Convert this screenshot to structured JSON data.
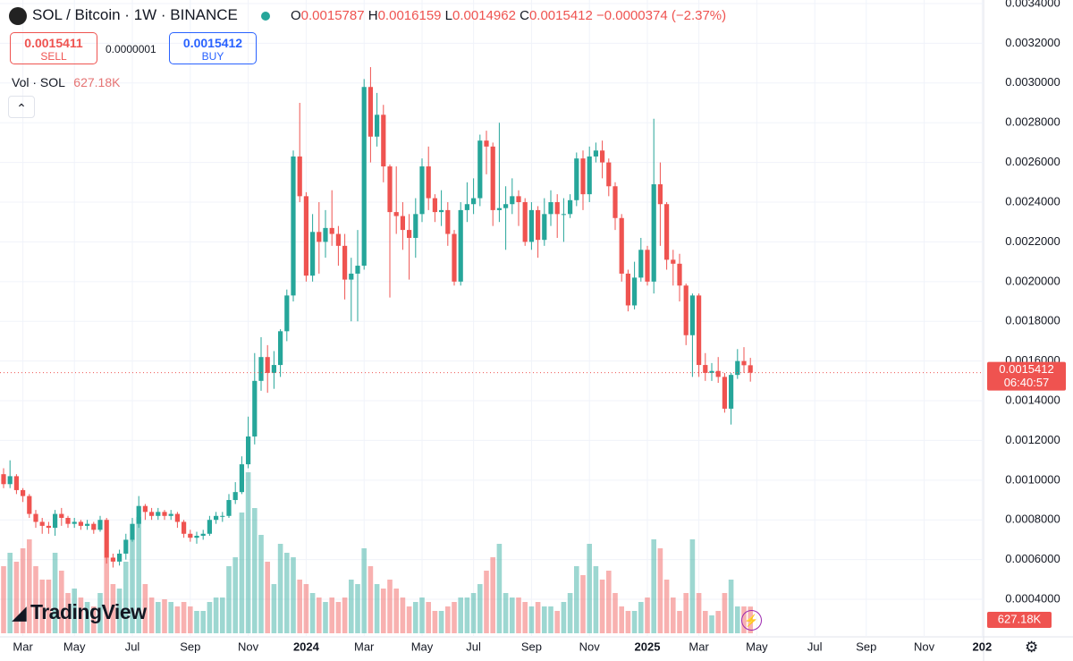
{
  "chart_data": {
    "type": "candlestick",
    "symbol": "SOL / Bitcoin · 1W · BINANCE",
    "ohlc_labels": [
      "O",
      "H",
      "L",
      "C"
    ],
    "change": "−0.0000374 (−2.37%)",
    "sell_price": 0.0015411,
    "sell_label": "SELL",
    "spread": "0.0000001",
    "buy_price": 0.0015412,
    "buy_label": "BUY",
    "countdown": "06:40:57",
    "logo_text": "TradingView",
    "up_color": "#26a69a",
    "down_color": "#ef5350",
    "price_line_color": "#ef5350",
    "ylim": [
      0.000229,
      0.003418
    ],
    "yticks": [
      {
        "value": 0.0004,
        "label": "0.0004000"
      },
      {
        "value": 0.0006,
        "label": "0.0006000"
      },
      {
        "value": 0.0008,
        "label": "0.0008000"
      },
      {
        "value": 0.001,
        "label": "0.0010000"
      },
      {
        "value": 0.0012,
        "label": "0.0012000"
      },
      {
        "value": 0.0014,
        "label": "0.0014000"
      },
      {
        "value": 0.0016,
        "label": "0.0016000"
      },
      {
        "value": 0.0018,
        "label": "0.0018000"
      },
      {
        "value": 0.002,
        "label": "0.0020000"
      },
      {
        "value": 0.0022,
        "label": "0.0022000"
      },
      {
        "value": 0.0024,
        "label": "0.0024000"
      },
      {
        "value": 0.0026,
        "label": "0.0026000"
      },
      {
        "value": 0.0028,
        "label": "0.0028000"
      },
      {
        "value": 0.003,
        "label": "0.0030000"
      },
      {
        "value": 0.0032,
        "label": "0.0032000"
      },
      {
        "value": 0.0034,
        "label": "0.0034000"
      }
    ],
    "grid": true,
    "categories": [
      null,
      null,
      null,
      "Mar",
      null,
      null,
      null,
      null,
      null,
      null,
      null,
      "May",
      null,
      null,
      null,
      null,
      null,
      null,
      null,
      null,
      "Jul",
      null,
      null,
      null,
      null,
      null,
      null,
      null,
      null,
      "Sep",
      null,
      null,
      null,
      null,
      null,
      null,
      null,
      null,
      "Nov",
      null,
      null,
      null,
      null,
      null,
      null,
      null,
      null,
      "2024",
      null,
      null,
      null,
      null,
      null,
      null,
      null,
      null,
      "Mar",
      null,
      null,
      null,
      null,
      null,
      null,
      null,
      null,
      "May",
      null,
      null,
      null,
      null,
      null,
      null,
      null,
      "Jul",
      null,
      null,
      null,
      null,
      null,
      null,
      null,
      null,
      "Sep",
      null,
      null,
      null,
      null,
      null,
      null,
      null,
      null,
      "Nov",
      null,
      null,
      null,
      null,
      null,
      null,
      null,
      null,
      "2025",
      null,
      null,
      null,
      null,
      null,
      null,
      null,
      "Mar",
      null,
      null,
      null,
      null,
      null,
      null,
      null,
      null,
      "May",
      null,
      null,
      null,
      null,
      null,
      null,
      null,
      null,
      "Jul",
      null,
      null,
      null,
      null,
      null,
      null,
      null,
      "Sep",
      null,
      null,
      null,
      null,
      null,
      null,
      null,
      null,
      "Nov",
      null,
      null,
      null,
      null,
      null,
      null,
      null,
      null,
      "202"
    ],
    "open": [
      0.00103,
      0.00098,
      0.00102,
      0.00095,
      0.00092,
      0.00083,
      0.00079,
      0.00077,
      0.00076,
      0.00083,
      0.00081,
      0.00078,
      0.00079,
      0.00077,
      0.00078,
      0.00075,
      0.0008,
      0.00061,
      0.00059,
      0.00063,
      0.0007,
      0.00078,
      0.00087,
      0.00084,
      0.00082,
      0.00084,
      0.00082,
      0.00083,
      0.00079,
      0.00073,
      0.00071,
      0.00072,
      0.00073,
      0.0008,
      0.00082,
      0.00082,
      0.0009,
      0.00094,
      0.00108,
      0.00122,
      0.0015,
      0.00162,
      0.00154,
      0.00158,
      0.00175,
      0.00193,
      0.00263,
      0.00243,
      0.00203,
      0.00225,
      0.0022,
      0.00227,
      0.00224,
      0.00218,
      0.00201,
      0.00204,
      0.00208,
      0.00298,
      0.00273,
      0.00284,
      0.00258,
      0.00235,
      0.00233,
      0.00226,
      0.00222,
      0.00234,
      0.00258,
      0.00242,
      0.00235,
      0.00236,
      0.00224,
      0.002,
      0.00236,
      0.00239,
      0.00242,
      0.00271,
      0.00268,
      0.00236,
      0.00237,
      0.00239,
      0.00243,
      0.0024,
      0.0022,
      0.00236,
      0.00221,
      0.00234,
      0.0024,
      0.00234,
      0.00234,
      0.00241,
      0.00262,
      0.00244,
      0.00263,
      0.00266,
      0.0026,
      0.00248,
      0.00232,
      0.00204,
      0.00188,
      0.00202,
      0.00216,
      0.002,
      0.00249,
      0.00239,
      0.00211,
      0.00209,
      0.00198,
      0.00173,
      0.00193,
      0.00158,
      0.00154,
      0.00155,
      0.00152,
      0.00136,
      0.00153,
      0.0016,
      0.0015787,
      null,
      null,
      null,
      null,
      null,
      null,
      null,
      null,
      null,
      null,
      null,
      null,
      null,
      null,
      null,
      null,
      null,
      null,
      null,
      null,
      null,
      null,
      null,
      null,
      null,
      null,
      null,
      null,
      null,
      null,
      null,
      null,
      null,
      null,
      null,
      null
    ],
    "high": [
      0.00106,
      0.0011,
      0.00103,
      0.00096,
      0.00093,
      0.00085,
      0.00081,
      0.00079,
      0.00085,
      0.00086,
      0.00082,
      0.00081,
      0.0008,
      0.0008,
      0.00079,
      0.00082,
      0.00081,
      0.00063,
      0.00065,
      0.00073,
      0.00081,
      0.00092,
      0.00088,
      0.00086,
      0.00086,
      0.00085,
      0.00085,
      0.00084,
      0.0008,
      0.00075,
      0.00074,
      0.00075,
      0.00082,
      0.00084,
      0.00084,
      0.00093,
      0.00099,
      0.00112,
      0.00132,
      0.00164,
      0.00172,
      0.00168,
      0.00165,
      0.00176,
      0.00196,
      0.00266,
      0.0029,
      0.00245,
      0.00234,
      0.0024,
      0.00236,
      0.00246,
      0.00228,
      0.00224,
      0.00212,
      0.00226,
      0.00302,
      0.00308,
      0.00295,
      0.00289,
      0.00259,
      0.00258,
      0.0024,
      0.00234,
      0.00242,
      0.00262,
      0.00268,
      0.00244,
      0.00246,
      0.0024,
      0.00226,
      0.0024,
      0.0025,
      0.00252,
      0.00274,
      0.00276,
      0.0027,
      0.0028,
      0.00248,
      0.00252,
      0.00246,
      0.00242,
      0.0024,
      0.00238,
      0.00242,
      0.00246,
      0.00244,
      0.00242,
      0.00244,
      0.00265,
      0.00266,
      0.00268,
      0.0027,
      0.00271,
      0.00262,
      0.0025,
      0.00234,
      0.00206,
      0.0021,
      0.00222,
      0.00218,
      0.00282,
      0.0026,
      0.0024,
      0.00216,
      0.00214,
      0.00199,
      0.00194,
      0.00194,
      0.00164,
      0.00159,
      0.00162,
      0.00154,
      0.00154,
      0.00166,
      0.00167,
      0.0016159,
      null,
      null,
      null,
      null,
      null,
      null,
      null,
      null,
      null,
      null,
      null,
      null,
      null,
      null,
      null,
      null,
      null,
      null,
      null,
      null,
      null,
      null,
      null,
      null,
      null,
      null,
      null,
      null,
      null,
      null,
      null,
      null,
      null,
      null,
      null,
      null
    ],
    "low": [
      0.00096,
      0.00096,
      0.00093,
      0.00089,
      0.00081,
      0.00076,
      0.00073,
      0.00073,
      0.00072,
      0.00077,
      0.00076,
      0.00076,
      0.00075,
      0.00075,
      0.00073,
      0.00074,
      0.00058,
      0.00056,
      0.00057,
      0.0006,
      0.00069,
      0.00076,
      0.0008,
      0.0008,
      0.0008,
      0.0008,
      0.0008,
      0.00076,
      0.00071,
      0.00069,
      0.00068,
      0.0007,
      0.00072,
      0.00078,
      0.00079,
      0.00081,
      0.00088,
      0.00093,
      0.00106,
      0.00118,
      0.00145,
      0.00144,
      0.00146,
      0.00152,
      0.0017,
      0.0019,
      0.0024,
      0.002,
      0.002,
      0.00204,
      0.00212,
      0.00218,
      0.00208,
      0.00191,
      0.0018,
      0.0018,
      0.00206,
      0.0026,
      0.00268,
      0.0025,
      0.00192,
      0.00224,
      0.00216,
      0.00201,
      0.00212,
      0.0023,
      0.00236,
      0.0023,
      0.00228,
      0.00218,
      0.00198,
      0.00198,
      0.0023,
      0.00234,
      0.00238,
      0.00254,
      0.00228,
      0.0023,
      0.00216,
      0.00234,
      0.00228,
      0.00218,
      0.00216,
      0.00212,
      0.00218,
      0.00228,
      0.00222,
      0.0022,
      0.00232,
      0.00238,
      0.00236,
      0.0024,
      0.0026,
      0.00252,
      0.00243,
      0.00226,
      0.002,
      0.00185,
      0.00186,
      0.002,
      0.00198,
      0.00194,
      0.00218,
      0.00206,
      0.00198,
      0.0019,
      0.00168,
      0.00152,
      0.00152,
      0.0015,
      0.0015,
      0.00149,
      0.00134,
      0.00128,
      0.00151,
      0.00154,
      0.0014962,
      null,
      null,
      null,
      null,
      null,
      null,
      null,
      null,
      null,
      null,
      null,
      null,
      null,
      null,
      null,
      null,
      null,
      null,
      null,
      null,
      null,
      null,
      null,
      null,
      null,
      null,
      null,
      null,
      null,
      null,
      null,
      null,
      null,
      null,
      null,
      null
    ],
    "close": [
      0.00098,
      0.00102,
      0.00095,
      0.00092,
      0.00083,
      0.00079,
      0.00077,
      0.00076,
      0.00083,
      0.00081,
      0.00078,
      0.00079,
      0.00077,
      0.00078,
      0.00075,
      0.0008,
      0.00061,
      0.00059,
      0.00063,
      0.0007,
      0.00078,
      0.00087,
      0.00084,
      0.00082,
      0.00084,
      0.00082,
      0.00083,
      0.00079,
      0.00073,
      0.00071,
      0.00072,
      0.00073,
      0.0008,
      0.00082,
      0.00082,
      0.0009,
      0.00094,
      0.00108,
      0.00122,
      0.0015,
      0.00162,
      0.00154,
      0.00158,
      0.00175,
      0.00193,
      0.00263,
      0.00243,
      0.00203,
      0.00225,
      0.0022,
      0.00227,
      0.00224,
      0.00218,
      0.00201,
      0.00204,
      0.00208,
      0.00298,
      0.00273,
      0.00284,
      0.00258,
      0.00235,
      0.00233,
      0.00226,
      0.00222,
      0.00234,
      0.00258,
      0.00242,
      0.00235,
      0.00236,
      0.00224,
      0.002,
      0.00236,
      0.00239,
      0.00242,
      0.00271,
      0.00268,
      0.00236,
      0.00237,
      0.00239,
      0.00243,
      0.0024,
      0.0022,
      0.00236,
      0.00221,
      0.00234,
      0.0024,
      0.00234,
      0.00234,
      0.00241,
      0.00262,
      0.00244,
      0.00263,
      0.00266,
      0.0026,
      0.00248,
      0.00232,
      0.00204,
      0.00188,
      0.00202,
      0.00216,
      0.002,
      0.00249,
      0.00239,
      0.00211,
      0.00209,
      0.00198,
      0.00173,
      0.00193,
      0.00158,
      0.00154,
      0.00155,
      0.00152,
      0.00136,
      0.00153,
      0.0016,
      0.0015787,
      0.0015412,
      null,
      null,
      null,
      null,
      null,
      null,
      null,
      null,
      null,
      null,
      null,
      null,
      null,
      null,
      null,
      null,
      null,
      null,
      null,
      null,
      null,
      null,
      null,
      null,
      null,
      null,
      null,
      null,
      null,
      null,
      null,
      null,
      null,
      null,
      null,
      null
    ],
    "volume": {
      "name": "Vol · SOL",
      "last_value_label": "627.18K",
      "values": [
        1575000,
        1890000,
        1680000,
        1995000,
        2205000,
        1575000,
        1260000,
        1260000,
        1890000,
        1470000,
        945000,
        1050000,
        840000,
        735000,
        630000,
        945000,
        1785000,
        1155000,
        1050000,
        1680000,
        2205000,
        2730000,
        1155000,
        840000,
        735000,
        798000,
        735000,
        630000,
        735000,
        630000,
        525000,
        525000,
        735000,
        840000,
        840000,
        1575000,
        1785000,
        2835000,
        3780000,
        2940000,
        2310000,
        1680000,
        1155000,
        2100000,
        1890000,
        1785000,
        1260000,
        1155000,
        945000,
        840000,
        735000,
        840000,
        735000,
        840000,
        1260000,
        1155000,
        1995000,
        1575000,
        1155000,
        1050000,
        1260000,
        1050000,
        840000,
        630000,
        735000,
        840000,
        735000,
        525000,
        525000,
        630000,
        735000,
        840000,
        840000,
        945000,
        1155000,
        1470000,
        1785000,
        2100000,
        945000,
        840000,
        840000,
        735000,
        630000,
        735000,
        630000,
        630000,
        525000,
        735000,
        945000,
        1575000,
        1365000,
        2100000,
        1575000,
        1260000,
        1470000,
        945000,
        630000,
        525000,
        525000,
        735000,
        840000,
        2205000,
        1995000,
        1260000,
        840000,
        525000,
        945000,
        2205000,
        945000,
        525000,
        420000,
        525000,
        945000,
        1260000,
        630000,
        630000,
        627180,
        null,
        null,
        null,
        null,
        null,
        null,
        null,
        null,
        null,
        null,
        null,
        null,
        null,
        null,
        null,
        null,
        null,
        null,
        null,
        null,
        null,
        null,
        null,
        null,
        null,
        null,
        null,
        null,
        null,
        null,
        null,
        null,
        null,
        null,
        null,
        null
      ]
    }
  }
}
